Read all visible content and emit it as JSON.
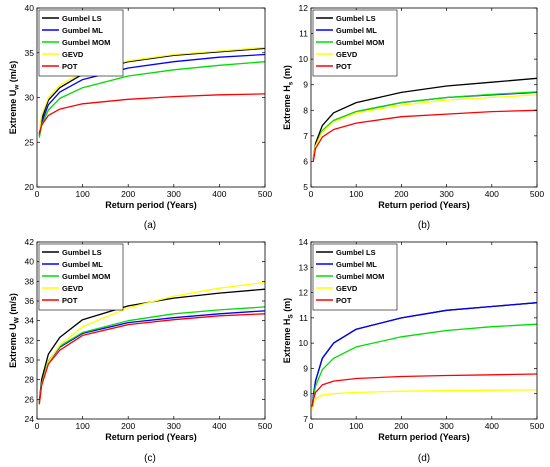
{
  "chart_data": [
    {
      "type": "line",
      "caption": "(a)",
      "xlabel": "Return period (Years)",
      "ylabel_base": "Extreme U",
      "ylabel_sub": "w",
      "ylabel_unit": " (m/s)",
      "xlim": [
        0,
        500
      ],
      "ylim": [
        20,
        40
      ],
      "xticks": [
        0,
        100,
        200,
        300,
        400,
        500
      ],
      "yticks": [
        20,
        25,
        30,
        35,
        40
      ],
      "legend": "top-left",
      "grid": false,
      "x": [
        5,
        10,
        25,
        50,
        100,
        200,
        300,
        400,
        500
      ],
      "series": [
        {
          "name": "Gumbel LS",
          "color": "#000000",
          "values": [
            25.9,
            27.6,
            29.7,
            31.1,
            32.6,
            34.0,
            34.7,
            35.1,
            35.5
          ]
        },
        {
          "name": "Gumbel ML",
          "color": "#0000ff",
          "values": [
            25.7,
            27.2,
            29.2,
            30.6,
            32.0,
            33.3,
            34.0,
            34.5,
            34.8
          ]
        },
        {
          "name": "Gumbel MOM",
          "color": "#00dd00",
          "values": [
            25.5,
            26.9,
            28.6,
            29.9,
            31.1,
            32.4,
            33.1,
            33.6,
            34.0
          ]
        },
        {
          "name": "GEVD",
          "color": "#ffff00",
          "values": [
            26.3,
            28.0,
            30.0,
            31.4,
            32.8,
            34.1,
            34.8,
            35.2,
            35.6
          ]
        },
        {
          "name": "POT",
          "color": "#ff0000",
          "values": [
            25.9,
            26.9,
            28.0,
            28.7,
            29.3,
            29.8,
            30.1,
            30.3,
            30.4
          ]
        }
      ]
    },
    {
      "type": "line",
      "caption": "(b)",
      "xlabel": "Return period (Years)",
      "ylabel_base": "Extreme H",
      "ylabel_sub": "s",
      "ylabel_unit": " (m)",
      "xlim": [
        0,
        500
      ],
      "ylim": [
        5,
        12
      ],
      "xticks": [
        0,
        100,
        200,
        300,
        400,
        500
      ],
      "yticks": [
        5,
        6,
        7,
        8,
        9,
        10,
        11,
        12
      ],
      "legend": "top-left",
      "grid": false,
      "x": [
        5,
        10,
        25,
        50,
        100,
        200,
        300,
        400,
        500
      ],
      "series": [
        {
          "name": "Gumbel LS",
          "color": "#000000",
          "values": [
            6.1,
            6.7,
            7.4,
            7.9,
            8.3,
            8.7,
            8.95,
            9.1,
            9.25
          ]
        },
        {
          "name": "Gumbel ML",
          "color": "#0000ff",
          "values": [
            6.05,
            6.6,
            7.2,
            7.6,
            7.95,
            8.3,
            8.5,
            8.6,
            8.7
          ]
        },
        {
          "name": "Gumbel MOM",
          "color": "#00dd00",
          "values": [
            6.05,
            6.6,
            7.2,
            7.6,
            7.95,
            8.3,
            8.5,
            8.62,
            8.72
          ]
        },
        {
          "name": "GEVD",
          "color": "#ffff00",
          "values": [
            6.05,
            6.6,
            7.15,
            7.55,
            7.9,
            8.2,
            8.4,
            8.5,
            8.6
          ]
        },
        {
          "name": "POT",
          "color": "#ff0000",
          "values": [
            6.0,
            6.5,
            6.95,
            7.25,
            7.5,
            7.75,
            7.85,
            7.95,
            8.0
          ]
        }
      ]
    },
    {
      "type": "line",
      "caption": "(c)",
      "xlabel": "Return period (Years)",
      "ylabel_base": "Extreme U",
      "ylabel_sub": "W",
      "ylabel_unit": " (m/s)",
      "xlim": [
        0,
        500
      ],
      "ylim": [
        24,
        42
      ],
      "xticks": [
        0,
        100,
        200,
        300,
        400,
        500
      ],
      "yticks": [
        24,
        26,
        28,
        30,
        32,
        34,
        36,
        38,
        40,
        42
      ],
      "legend": "top-left",
      "grid": false,
      "x": [
        5,
        10,
        25,
        50,
        100,
        200,
        300,
        400,
        500
      ],
      "series": [
        {
          "name": "Gumbel LS",
          "color": "#000000",
          "values": [
            25.8,
            28.0,
            30.6,
            32.3,
            34.1,
            35.5,
            36.3,
            36.8,
            37.2
          ]
        },
        {
          "name": "Gumbel ML",
          "color": "#0000ff",
          "values": [
            25.6,
            27.6,
            29.8,
            31.3,
            32.7,
            33.8,
            34.3,
            34.7,
            35.0
          ]
        },
        {
          "name": "Gumbel MOM",
          "color": "#00dd00",
          "values": [
            25.6,
            27.6,
            29.9,
            31.4,
            32.8,
            34.0,
            34.7,
            35.1,
            35.4
          ]
        },
        {
          "name": "GEVD",
          "color": "#ffff00",
          "values": [
            25.5,
            27.4,
            29.8,
            31.5,
            33.4,
            35.3,
            36.5,
            37.3,
            37.9
          ]
        },
        {
          "name": "POT",
          "color": "#ff0000",
          "values": [
            25.5,
            27.4,
            29.6,
            31.0,
            32.5,
            33.6,
            34.1,
            34.5,
            34.7
          ]
        }
      ]
    },
    {
      "type": "line",
      "caption": "(d)",
      "xlabel": "Return period (Years)",
      "ylabel_base": "Extreme H",
      "ylabel_sub": "S",
      "ylabel_unit": " (m)",
      "xlim": [
        0,
        500
      ],
      "ylim": [
        7,
        14
      ],
      "xticks": [
        0,
        100,
        200,
        300,
        400,
        500
      ],
      "yticks": [
        7,
        8,
        9,
        10,
        11,
        12,
        13,
        14
      ],
      "legend": "top-left",
      "grid": false,
      "x": [
        3,
        5,
        10,
        25,
        50,
        100,
        200,
        300,
        400,
        500
      ],
      "series": [
        {
          "name": "Gumbel LS",
          "color": "#000000",
          "values": [
            7.5,
            7.9,
            8.5,
            9.4,
            10.0,
            10.55,
            11.0,
            11.3,
            11.45,
            11.6
          ]
        },
        {
          "name": "Gumbel ML",
          "color": "#0000ff",
          "values": [
            7.5,
            7.9,
            8.5,
            9.4,
            10.0,
            10.55,
            11.0,
            11.3,
            11.45,
            11.6
          ]
        },
        {
          "name": "Gumbel MOM",
          "color": "#00dd00",
          "values": [
            7.45,
            7.8,
            8.3,
            8.95,
            9.4,
            9.85,
            10.25,
            10.5,
            10.65,
            10.75
          ]
        },
        {
          "name": "GEVD",
          "color": "#ffff00",
          "values": [
            7.4,
            7.6,
            7.8,
            7.95,
            8.0,
            8.05,
            8.1,
            8.12,
            8.14,
            8.15
          ]
        },
        {
          "name": "POT",
          "color": "#ff0000",
          "values": [
            7.5,
            7.75,
            8.05,
            8.35,
            8.5,
            8.6,
            8.68,
            8.72,
            8.75,
            8.78
          ]
        }
      ]
    }
  ]
}
